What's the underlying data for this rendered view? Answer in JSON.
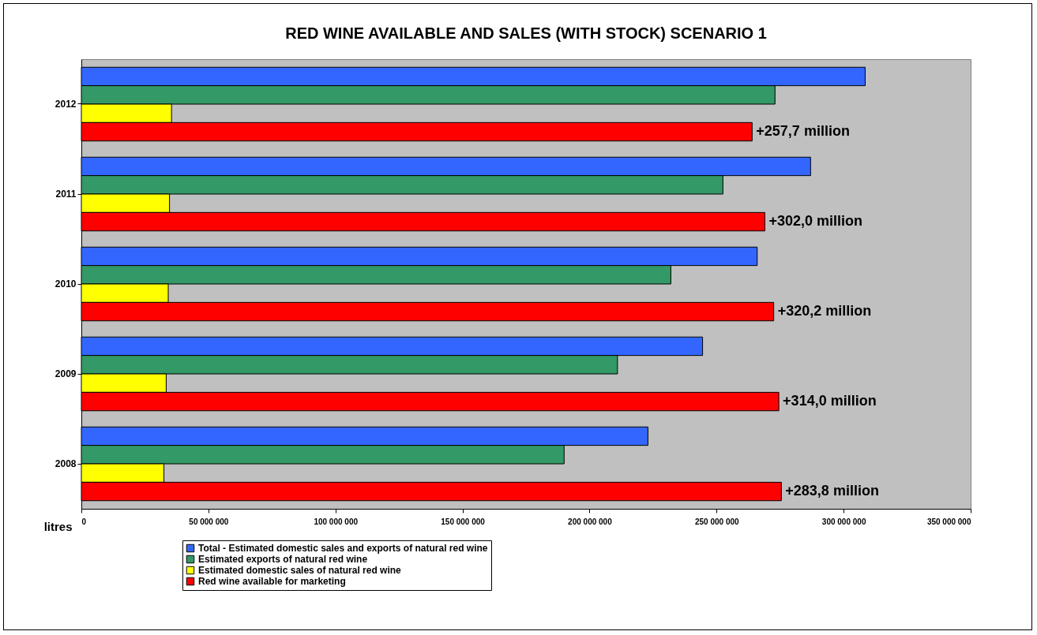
{
  "chart_data": {
    "type": "bar",
    "orientation": "horizontal",
    "title": "RED WINE AVAILABLE AND SALES (WITH STOCK) SCENARIO 1",
    "xlabel": "litres",
    "categories": [
      "2012",
      "2011",
      "2010",
      "2009",
      "2008"
    ],
    "series": [
      {
        "name": "Total - Estimated domestic sales and exports of natural red wine",
        "color": "#3366ff",
        "values": [
          308500000,
          287000000,
          266000000,
          244500000,
          223000000
        ]
      },
      {
        "name": "Estimated exports  of natural red wine",
        "color": "#339966",
        "values": [
          273000000,
          252500000,
          232000000,
          211000000,
          190000000
        ]
      },
      {
        "name": "Estimated domestic sales of natural red wine",
        "color": "#ffff00",
        "values": [
          35500000,
          34700000,
          34200000,
          33400000,
          32500000
        ]
      },
      {
        "name": "Red wine available for marketing",
        "color": "#ff0000",
        "values": [
          264000000,
          269000000,
          272500000,
          274500000,
          275500000
        ]
      }
    ],
    "xlim": [
      0,
      350000000
    ],
    "xticks": [
      0,
      {
        "value": 50000000,
        "label": "50 000 000"
      },
      {
        "value": 100000000,
        "label": "100 000 000"
      },
      {
        "value": 150000000,
        "label": "150 000 000"
      },
      {
        "value": 200000000,
        "label": "200 000 000"
      },
      {
        "value": 250000000,
        "label": "250 000 000"
      },
      {
        "value": 300000000,
        "label": "300 000 000"
      },
      {
        "value": 350000000,
        "label": "350 000 000"
      }
    ],
    "annotations": [
      "+257,7 million",
      "+302,0 million",
      "+320,2 million",
      "+314,0 million",
      "+283,8 million"
    ],
    "legend": "bottom",
    "grid": false
  }
}
